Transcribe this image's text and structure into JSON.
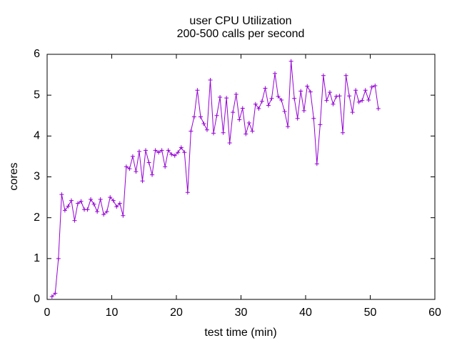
{
  "chart_data": {
    "type": "line",
    "title": "user CPU Utilization",
    "subtitle": "200-500 calls per second",
    "x_label": "test time (min)",
    "y_label": "cores",
    "color": "#9400d3",
    "x": [
      0.75,
      1.25,
      1.75,
      2.25,
      2.75,
      3.25,
      3.75,
      4.25,
      4.75,
      5.25,
      5.75,
      6.25,
      6.75,
      7.25,
      7.75,
      8.25,
      8.75,
      9.25,
      9.75,
      10.25,
      10.75,
      11.25,
      11.75,
      12.25,
      12.75,
      13.25,
      13.75,
      14.25,
      14.75,
      15.25,
      15.75,
      16.25,
      16.75,
      17.25,
      17.75,
      18.25,
      18.75,
      19.25,
      19.75,
      20.25,
      20.75,
      21.25,
      21.75,
      22.25,
      22.75,
      23.25,
      23.75,
      24.25,
      24.75,
      25.25,
      25.75,
      26.25,
      26.75,
      27.25,
      27.75,
      28.25,
      28.75,
      29.25,
      29.75,
      30.25,
      30.75,
      31.25,
      31.75,
      32.25,
      32.75,
      33.25,
      33.75,
      34.25,
      34.75,
      35.25,
      35.75,
      36.25,
      36.75,
      37.25,
      37.75,
      38.25,
      38.75,
      39.25,
      39.75,
      40.25,
      40.75,
      41.25,
      41.75,
      42.25,
      42.75,
      43.25,
      43.75,
      44.25,
      44.75,
      45.25,
      45.75,
      46.25,
      46.75,
      47.25,
      47.75,
      48.25,
      48.75,
      49.25,
      49.75,
      50.25,
      50.75,
      51.25
    ],
    "values": [
      0.07,
      0.15,
      1.0,
      2.57,
      2.18,
      2.28,
      2.42,
      1.93,
      2.35,
      2.4,
      2.2,
      2.2,
      2.45,
      2.33,
      2.15,
      2.45,
      2.08,
      2.15,
      2.5,
      2.42,
      2.27,
      2.35,
      2.05,
      3.25,
      3.2,
      3.5,
      3.13,
      3.62,
      2.9,
      3.65,
      3.35,
      3.05,
      3.65,
      3.6,
      3.65,
      3.25,
      3.65,
      3.55,
      3.52,
      3.6,
      3.72,
      3.6,
      2.62,
      4.12,
      4.47,
      5.12,
      4.47,
      4.3,
      4.15,
      5.37,
      4.07,
      4.5,
      4.95,
      4.08,
      4.93,
      3.83,
      4.58,
      5.02,
      4.4,
      4.68,
      4.05,
      4.32,
      4.12,
      4.78,
      4.67,
      4.85,
      5.17,
      4.75,
      4.92,
      5.53,
      4.97,
      4.88,
      4.6,
      4.23,
      5.83,
      4.92,
      4.43,
      5.1,
      4.62,
      5.22,
      5.08,
      4.43,
      3.32,
      4.28,
      5.48,
      4.87,
      5.07,
      4.78,
      4.97,
      4.98,
      4.08,
      5.48,
      4.98,
      4.58,
      5.12,
      4.83,
      4.87,
      5.12,
      4.88,
      5.2,
      5.23,
      4.67
    ],
    "xlim": [
      0,
      60
    ],
    "xticks": [
      0,
      10,
      20,
      30,
      40,
      50,
      60
    ],
    "ylim": [
      0,
      6
    ],
    "yticks": [
      0,
      1,
      2,
      3,
      4,
      5,
      6
    ],
    "grid": false
  }
}
